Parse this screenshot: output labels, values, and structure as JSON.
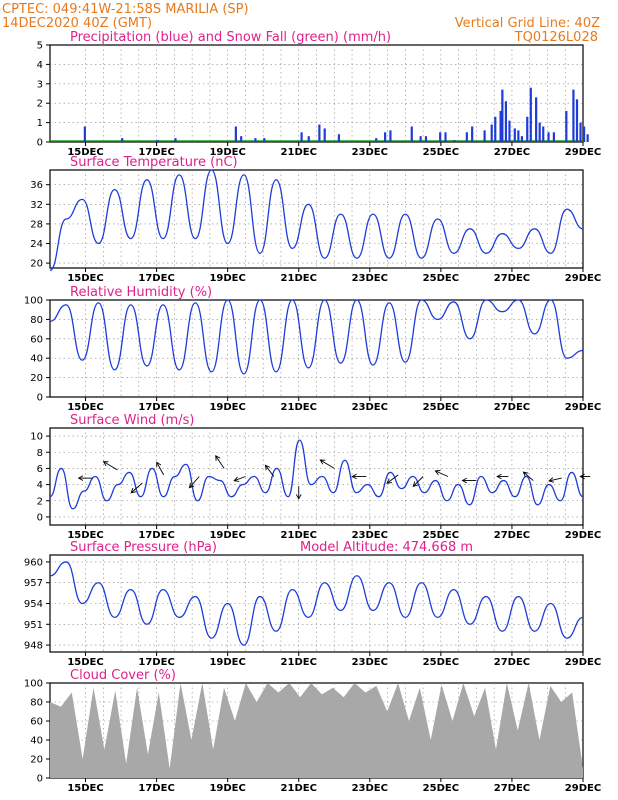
{
  "header": {
    "station": "CPTEC:   049:41W-21:58S   MARILIA  (SP)",
    "run": "14DEC2020  40Z  (GMT)",
    "grid_note": "Vertical Grid Line: 40Z",
    "code": "TQ0126L028"
  },
  "colors": {
    "header": "#e87a1c",
    "title": "#e0208c",
    "line": "#1f3cd8",
    "precip": "#1f3cd8",
    "snow": "#1aa01a",
    "cloud": "#a8a8a8"
  },
  "x_tick_labels": [
    "15DEC",
    "17DEC",
    "19DEC",
    "21DEC",
    "23DEC",
    "25DEC",
    "27DEC",
    "29DEC"
  ],
  "chart_data": [
    {
      "type": "bar",
      "title": "Precipitation (blue) and Snow Fall (green) (mm/h)",
      "ylim": [
        0,
        5
      ],
      "yticks": [
        "0",
        "1",
        "2",
        "3",
        "4",
        "5"
      ],
      "series": [
        {
          "name": "Precipitation",
          "bars": [
            [
              1.9,
              0.8
            ],
            [
              4.0,
              0.2
            ],
            [
              6.0,
              0.1
            ],
            [
              7.0,
              0.2
            ],
            [
              10.4,
              0.8
            ],
            [
              10.7,
              0.3
            ],
            [
              11.5,
              0.2
            ],
            [
              12.0,
              0.2
            ],
            [
              14.1,
              0.5
            ],
            [
              14.5,
              0.3
            ],
            [
              15.1,
              0.9
            ],
            [
              15.4,
              0.7
            ],
            [
              16.2,
              0.4
            ],
            [
              18.3,
              0.2
            ],
            [
              18.8,
              0.5
            ],
            [
              19.1,
              0.6
            ],
            [
              20.3,
              0.8
            ],
            [
              20.8,
              0.3
            ],
            [
              21.1,
              0.3
            ],
            [
              21.9,
              0.5
            ],
            [
              22.2,
              0.5
            ],
            [
              22.7,
              0.1
            ],
            [
              23.4,
              0.5
            ],
            [
              23.7,
              0.8
            ],
            [
              24.4,
              0.6
            ],
            [
              24.8,
              0.9
            ],
            [
              25.0,
              1.3
            ],
            [
              25.3,
              1.6
            ],
            [
              25.4,
              2.7
            ],
            [
              25.6,
              2.1
            ],
            [
              25.8,
              1.1
            ],
            [
              26.1,
              0.7
            ],
            [
              26.3,
              0.6
            ],
            [
              26.5,
              0.3
            ],
            [
              26.8,
              1.3
            ],
            [
              27.0,
              2.8
            ],
            [
              27.3,
              2.3
            ],
            [
              27.5,
              1.0
            ],
            [
              27.7,
              0.8
            ],
            [
              28.0,
              0.5
            ],
            [
              28.3,
              0.5
            ],
            [
              29.0,
              1.6
            ],
            [
              29.4,
              2.7
            ],
            [
              29.6,
              2.2
            ],
            [
              29.8,
              1.0
            ],
            [
              30.0,
              0.8
            ],
            [
              30.2,
              0.4
            ]
          ]
        },
        {
          "name": "Snow Fall",
          "values": []
        }
      ]
    },
    {
      "type": "line",
      "title": "Surface Temperature (nC)",
      "ylim": [
        19,
        39
      ],
      "yticks": [
        "20",
        "24",
        "28",
        "32",
        "36"
      ],
      "values": [
        18.5,
        29,
        33,
        24,
        35,
        25,
        37,
        25,
        38,
        25,
        39,
        24,
        38,
        22,
        37,
        23,
        32,
        21,
        30,
        21,
        30,
        21,
        30,
        21,
        29,
        22,
        27,
        22,
        26,
        23,
        27,
        22,
        31,
        27
      ]
    },
    {
      "type": "line",
      "title": "Relative Humidity (%)",
      "ylim": [
        0,
        100
      ],
      "yticks": [
        "0",
        "20",
        "40",
        "60",
        "80",
        "100"
      ],
      "values": [
        78,
        95,
        38,
        97,
        28,
        95,
        32,
        95,
        28,
        97,
        26,
        100,
        24,
        100,
        26,
        100,
        30,
        100,
        35,
        100,
        33,
        97,
        36,
        100,
        80,
        98,
        60,
        100,
        88,
        100,
        65,
        100,
        40,
        48
      ]
    },
    {
      "type": "line",
      "title": "Surface Wind (m/s)",
      "ylim": [
        -1,
        11
      ],
      "yticks": [
        "0",
        "2",
        "4",
        "6",
        "8",
        "10"
      ],
      "values": [
        2.5,
        6,
        1,
        3.2,
        5,
        2,
        4,
        5.5,
        2.5,
        6,
        2.5,
        5,
        6.5,
        2,
        5,
        4.5,
        2.5,
        4,
        5,
        3,
        6,
        2.5,
        9.5,
        4,
        5,
        3,
        7,
        3,
        4,
        2.5,
        5.5,
        3.5,
        5,
        3,
        4.5,
        2,
        4,
        1.5,
        5,
        3,
        4.5,
        2.5,
        5,
        1.5,
        4,
        2,
        5.5,
        2.5
      ]
    },
    {
      "type": "line",
      "title": "Surface Pressure (hPa)",
      "annotation": "Model Altitude: 474.668 m",
      "ylim": [
        947,
        961
      ],
      "yticks": [
        "948",
        "951",
        "954",
        "957",
        "960"
      ],
      "values": [
        958,
        960,
        954,
        957,
        952,
        956,
        951,
        956,
        952,
        955,
        949,
        954,
        948,
        955,
        950,
        956,
        952,
        957,
        953,
        958,
        953,
        957,
        952,
        957,
        952,
        956,
        951,
        955,
        950,
        955,
        950,
        954,
        949,
        952
      ]
    },
    {
      "type": "area",
      "title": "Cloud Cover (%)",
      "ylim": [
        0,
        100
      ],
      "yticks": [
        "0",
        "20",
        "40",
        "60",
        "80",
        "100"
      ],
      "values": [
        80,
        75,
        90,
        20,
        95,
        30,
        92,
        15,
        95,
        25,
        90,
        10,
        100,
        40,
        100,
        30,
        95,
        60,
        100,
        80,
        100,
        90,
        100,
        85,
        100,
        88,
        95,
        85,
        100,
        90,
        97,
        70,
        100,
        60,
        95,
        40,
        98,
        60,
        100,
        65,
        95,
        30,
        100,
        50,
        100,
        40,
        97,
        80,
        90,
        10
      ]
    }
  ]
}
